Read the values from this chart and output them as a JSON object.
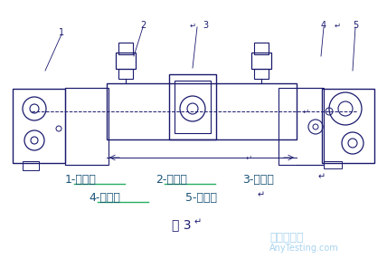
{
  "bg_color": "#ffffff",
  "line_color": "#1a1a6e",
  "label_color": "#1a5276",
  "watermark_color": "#85c1e9",
  "title": "图 3",
  "label1": "1-竖针夹",
  "label2": "2-伸缩体",
  "label3": "3-撑开架",
  "label4": "4-竖针夹",
  "label5": "5-偏心轴",
  "watermark_line1": "嘉峪检测网",
  "watermark_line2": "AnyTesting.com",
  "fig_width": 4.28,
  "fig_height": 2.86,
  "dpi": 100
}
